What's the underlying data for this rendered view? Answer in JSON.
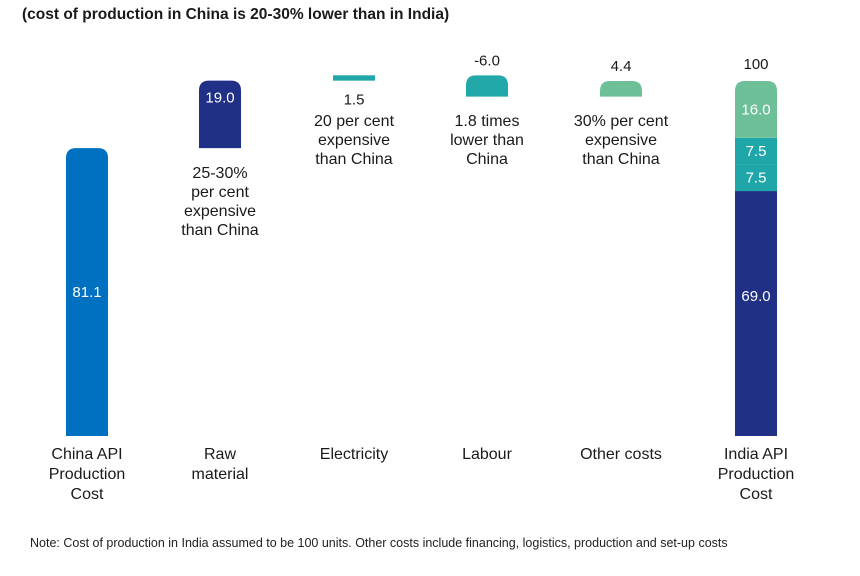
{
  "subtitle": "(cost of production in China is 20-30% lower than in India)",
  "note": "Note: Cost of production in India assumed to be 100 units. Other costs include financing, logistics, production and set-up costs",
  "colors": {
    "china_bar": "#0070c0",
    "raw_material": "#1f3086",
    "electricity": "#1fa6a8",
    "labour": "#22a8a8",
    "other_costs": "#6cbf97",
    "axis_text": "#1a1a1a"
  },
  "chart_data": {
    "type": "bar",
    "subtype": "waterfall",
    "categories": [
      "China API Production Cost",
      "Raw material",
      "Electricity",
      "Labour",
      "Other costs",
      "India API Production Cost"
    ],
    "category_label_lines": [
      [
        "China API",
        "Production",
        "Cost"
      ],
      [
        "Raw",
        "material"
      ],
      [
        "Electricity"
      ],
      [
        "Labour"
      ],
      [
        "Other costs"
      ],
      [
        "India API",
        "Production",
        "Cost"
      ]
    ],
    "bars": [
      {
        "category": "China API Production Cost",
        "start": 0,
        "value": 81.1,
        "label": "81.1",
        "color": "#0070c0"
      },
      {
        "category": "Raw material",
        "start": 81.1,
        "value": 19.0,
        "label": "19.0",
        "color": "#1f3086"
      },
      {
        "category": "Electricity",
        "start": 100.1,
        "value": 1.5,
        "label": "1.5",
        "color": "#1fa6a8"
      },
      {
        "category": "Labour",
        "start": 101.6,
        "value": -6.0,
        "label": "-6.0",
        "color": "#22a8a8"
      },
      {
        "category": "Other costs",
        "start": 95.6,
        "value": 4.4,
        "label": "4.4",
        "color": "#6cbf97"
      }
    ],
    "stacked_total": {
      "category": "India API Production Cost",
      "total": 100,
      "total_label": "100",
      "segments": [
        {
          "value": 69.0,
          "label": "69.0",
          "color": "#1f3086"
        },
        {
          "value": 7.5,
          "label": "7.5",
          "color": "#1fa6a8"
        },
        {
          "value": 7.5,
          "label": "7.5",
          "color": "#1fa6a8"
        },
        {
          "value": 16.0,
          "label": "16.0",
          "color": "#6cbf97"
        }
      ]
    },
    "annotations": [
      {
        "category": "Raw material",
        "lines": [
          "25-30%",
          "per cent",
          "expensive",
          "than China"
        ]
      },
      {
        "category": "Electricity",
        "lines": [
          "20 per cent",
          "expensive",
          "than China"
        ]
      },
      {
        "category": "Labour",
        "lines": [
          "1.8 times",
          "lower than",
          "China"
        ]
      },
      {
        "category": "Other costs",
        "lines": [
          "30% per cent",
          "expensive",
          "than China"
        ]
      }
    ],
    "grid": false,
    "legend": "none",
    "y_axis_visible": false
  }
}
